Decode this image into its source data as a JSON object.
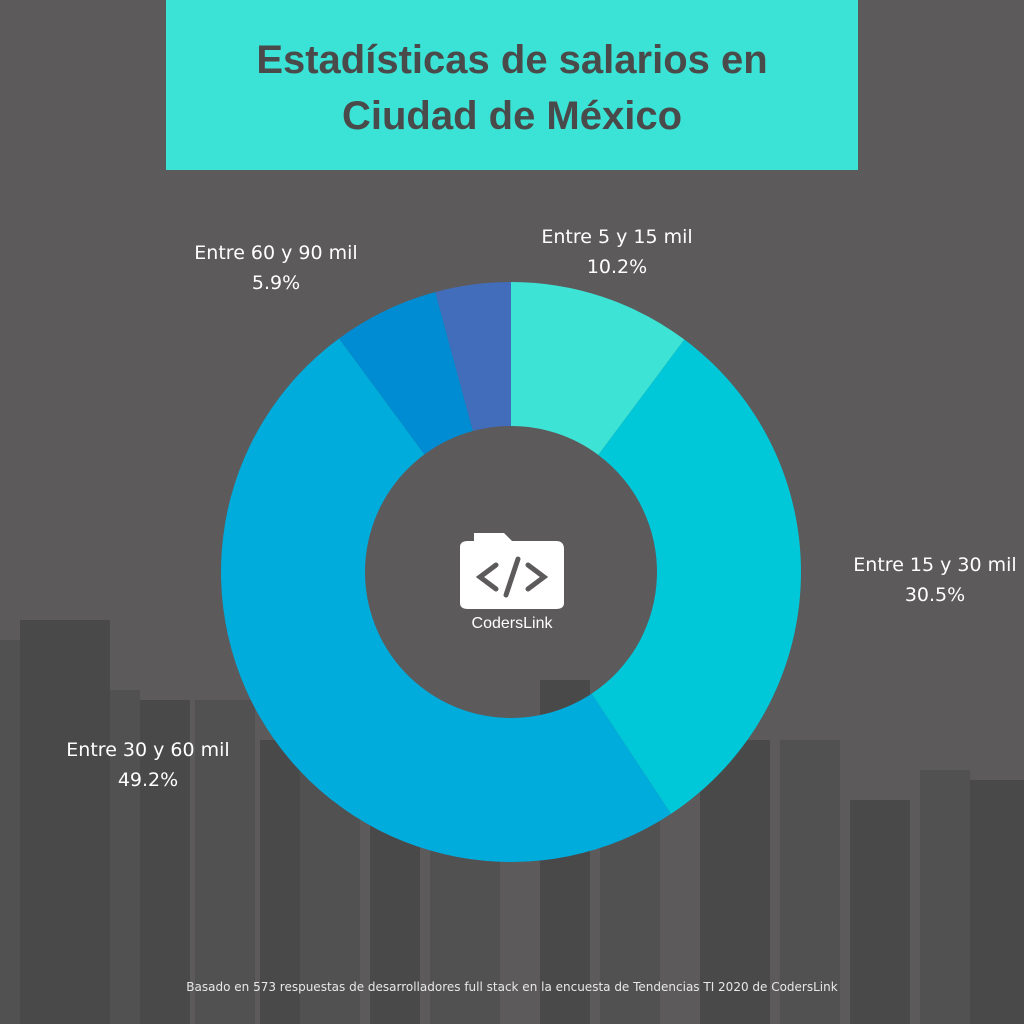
{
  "title": "Estadísticas de salarios en\nCiudad de México",
  "chart_data": {
    "type": "pie",
    "donut": true,
    "categories": [
      "Entre 5 y 15 mil",
      "Entre 15 y 30 mil",
      "Entre 30 y 60 mil",
      "Entre 60 y 90 mil",
      ""
    ],
    "values": [
      10.2,
      30.5,
      49.2,
      5.9,
      4.2
    ],
    "value_labels": [
      "10.2%",
      "30.5%",
      "49.2%",
      "5.9%",
      ""
    ],
    "colors": [
      "#3de3d5",
      "#00c8d9",
      "#00acdc",
      "#008cd2",
      "#426dbb"
    ]
  },
  "logo": {
    "text": "CodersLink",
    "icon": "code-folder-icon"
  },
  "footer": "Basado en 573 respuestas de desarrolladores full stack en la encuesta de Tendencias TI 2020 de CodersLink"
}
